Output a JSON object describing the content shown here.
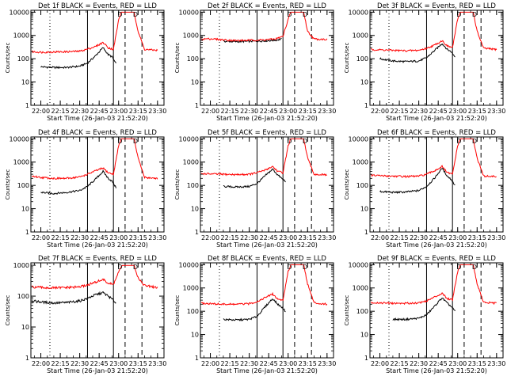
{
  "figure": {
    "background": "#ffffff",
    "axis_color": "#000000",
    "events_color": "#000000",
    "lld_color": "#ff0000"
  },
  "chart_data": [
    {
      "type": "line",
      "title": "Det 1f BLACK = Events, RED = LLD",
      "xlabel": "Start Time (26-Jan-03 21:52:20)",
      "ylabel": "Counts/sec",
      "xticks": [
        "22:00",
        "22:15",
        "22:30",
        "22:45",
        "23:00",
        "23:15",
        "23:30"
      ],
      "yticks": [
        "1",
        "10",
        "100",
        "1000",
        "10000"
      ],
      "xlim": [
        "21:52:20",
        "23:35"
      ],
      "ylim": [
        1,
        12000
      ],
      "yscale": "log",
      "marker_labels": [
        "D",
        "D"
      ],
      "vlines_dotted": [
        "22:07"
      ],
      "vlines_solid": [
        "22:36",
        "22:56"
      ],
      "vlines_dashed": [
        "23:05",
        "23:18"
      ],
      "series": [
        {
          "name": "BLACK = Events",
          "color": "#000000",
          "x": [
            "22:00",
            "22:10",
            "22:20",
            "22:30",
            "22:36",
            "22:42",
            "22:48",
            "22:52",
            "22:55",
            "22:58"
          ],
          "values": [
            45,
            42,
            42,
            48,
            65,
            130,
            300,
            150,
            120,
            60
          ]
        },
        {
          "name": "RED = LLD",
          "color": "#ff0000",
          "x": [
            "21:53",
            "22:00",
            "22:10",
            "22:20",
            "22:30",
            "22:36",
            "22:42",
            "22:48",
            "22:52",
            "22:56",
            "23:00",
            "23:02",
            "23:12",
            "23:15",
            "23:20",
            "23:30"
          ],
          "values": [
            200,
            190,
            195,
            200,
            210,
            260,
            330,
            500,
            300,
            250,
            4500,
            10000,
            10000,
            1500,
            250,
            230
          ]
        }
      ]
    },
    {
      "type": "line",
      "title": "Det 2f BLACK = Events, RED = LLD",
      "xlabel": "Start Time (26-Jan-03 21:52:20)",
      "ylabel": "Counts/sec",
      "xticks": [
        "22:00",
        "22:15",
        "22:30",
        "22:45",
        "23:00",
        "23:15",
        "23:30"
      ],
      "yticks": [
        "1",
        "10",
        "100",
        "1000",
        "10000"
      ],
      "xlim": [
        "21:52:20",
        "23:35"
      ],
      "ylim": [
        1,
        12000
      ],
      "yscale": "log",
      "marker_labels": [
        "D",
        "D"
      ],
      "vlines_dotted": [
        "22:07"
      ],
      "vlines_solid": [
        "22:36",
        "22:56"
      ],
      "vlines_dashed": [
        "23:05",
        "23:18"
      ],
      "series": [
        {
          "name": "BLACK = Events",
          "color": "#000000",
          "x": [
            "22:10",
            "22:20",
            "22:30",
            "22:40",
            "22:50",
            "22:55"
          ],
          "values": [
            560,
            540,
            560,
            580,
            620,
            700
          ]
        },
        {
          "name": "RED = LLD",
          "color": "#ff0000",
          "x": [
            "21:53",
            "22:00",
            "22:10",
            "22:20",
            "22:30",
            "22:40",
            "22:50",
            "22:56",
            "23:00",
            "23:02",
            "23:12",
            "23:15",
            "23:20",
            "23:30"
          ],
          "values": [
            700,
            720,
            650,
            600,
            620,
            640,
            700,
            900,
            5000,
            10000,
            10000,
            1500,
            700,
            680
          ]
        }
      ]
    },
    {
      "type": "line",
      "title": "Det 3f BLACK = Events, RED = LLD",
      "xlabel": "Start Time (26-Jan-03 21:52:20)",
      "ylabel": "Counts/sec",
      "xticks": [
        "22:00",
        "22:15",
        "22:30",
        "22:45",
        "23:00",
        "23:15",
        "23:30"
      ],
      "yticks": [
        "1",
        "10",
        "100",
        "1000",
        "10000"
      ],
      "xlim": [
        "21:52:20",
        "23:35"
      ],
      "ylim": [
        1,
        12000
      ],
      "yscale": "log",
      "marker_labels": [
        "D",
        "D"
      ],
      "vlines_dotted": [
        "22:07"
      ],
      "vlines_solid": [
        "22:36",
        "22:56"
      ],
      "vlines_dashed": [
        "23:05",
        "23:18"
      ],
      "series": [
        {
          "name": "BLACK = Events",
          "color": "#000000",
          "x": [
            "22:00",
            "22:10",
            "22:20",
            "22:30",
            "22:36",
            "22:42",
            "22:48",
            "22:52",
            "22:55",
            "22:58"
          ],
          "values": [
            100,
            80,
            75,
            80,
            110,
            220,
            450,
            250,
            200,
            120
          ]
        },
        {
          "name": "RED = LLD",
          "color": "#ff0000",
          "x": [
            "21:53",
            "22:00",
            "22:10",
            "22:20",
            "22:30",
            "22:36",
            "22:42",
            "22:48",
            "22:52",
            "22:56",
            "23:00",
            "23:02",
            "23:12",
            "23:15",
            "23:20",
            "23:30"
          ],
          "values": [
            250,
            240,
            230,
            220,
            230,
            280,
            380,
            600,
            350,
            300,
            5000,
            10000,
            10000,
            1500,
            280,
            250
          ]
        }
      ]
    },
    {
      "type": "line",
      "title": "Det 4f BLACK = Events, RED = LLD",
      "xlabel": "Start Time (26-Jan-03 21:52:20)",
      "ylabel": "Counts/sec",
      "xticks": [
        "22:00",
        "22:15",
        "22:30",
        "22:45",
        "23:00",
        "23:15",
        "23:30"
      ],
      "yticks": [
        "1",
        "10",
        "100",
        "1000",
        "10000"
      ],
      "xlim": [
        "21:52:20",
        "23:35"
      ],
      "ylim": [
        1,
        12000
      ],
      "yscale": "log",
      "marker_labels": [
        "D",
        "D"
      ],
      "vlines_dotted": [
        "22:07"
      ],
      "vlines_solid": [
        "22:36",
        "22:56"
      ],
      "vlines_dashed": [
        "23:05",
        "23:18"
      ],
      "series": [
        {
          "name": "BLACK = Events",
          "color": "#000000",
          "x": [
            "22:00",
            "22:10",
            "22:20",
            "22:30",
            "22:36",
            "22:42",
            "22:48",
            "22:52",
            "22:55",
            "22:58"
          ],
          "values": [
            50,
            45,
            50,
            60,
            90,
            180,
            400,
            200,
            150,
            80
          ]
        },
        {
          "name": "RED = LLD",
          "color": "#ff0000",
          "x": [
            "21:53",
            "22:00",
            "22:10",
            "22:20",
            "22:30",
            "22:36",
            "22:42",
            "22:48",
            "22:52",
            "22:56",
            "23:00",
            "23:02",
            "23:12",
            "23:15",
            "23:20",
            "23:30"
          ],
          "values": [
            250,
            220,
            200,
            200,
            230,
            300,
            420,
            550,
            350,
            300,
            5000,
            10000,
            10000,
            1500,
            220,
            200
          ]
        }
      ]
    },
    {
      "type": "line",
      "title": "Det 5f BLACK = Events, RED = LLD",
      "xlabel": "Start Time (26-Jan-03 21:52:20)",
      "ylabel": "Counts/sec",
      "xticks": [
        "22:00",
        "22:15",
        "22:30",
        "22:45",
        "23:00",
        "23:15",
        "23:30"
      ],
      "yticks": [
        "1",
        "10",
        "100",
        "1000",
        "10000"
      ],
      "xlim": [
        "21:52:20",
        "23:35"
      ],
      "ylim": [
        1,
        12000
      ],
      "yscale": "log",
      "marker_labels": [
        "D",
        "D"
      ],
      "vlines_dotted": [
        "22:07"
      ],
      "vlines_solid": [
        "22:36",
        "22:56"
      ],
      "vlines_dashed": [
        "23:05",
        "23:18"
      ],
      "series": [
        {
          "name": "BLACK = Events",
          "color": "#000000",
          "x": [
            "22:10",
            "22:20",
            "22:30",
            "22:36",
            "22:42",
            "22:48",
            "22:52",
            "22:55",
            "22:58"
          ],
          "values": [
            90,
            85,
            90,
            120,
            250,
            500,
            280,
            200,
            150
          ]
        },
        {
          "name": "RED = LLD",
          "color": "#ff0000",
          "x": [
            "21:53",
            "22:00",
            "22:10",
            "22:20",
            "22:30",
            "22:36",
            "22:42",
            "22:48",
            "22:52",
            "22:56",
            "23:00",
            "23:02",
            "23:12",
            "23:15",
            "23:20",
            "23:30"
          ],
          "values": [
            320,
            310,
            300,
            290,
            300,
            350,
            450,
            650,
            400,
            350,
            5000,
            10000,
            10000,
            1500,
            300,
            280
          ]
        }
      ]
    },
    {
      "type": "line",
      "title": "Det 6f BLACK = Events, RED = LLD",
      "xlabel": "Start Time (26-Jan-03 21:52:20)",
      "ylabel": "Counts/sec",
      "xticks": [
        "22:00",
        "22:15",
        "22:30",
        "22:45",
        "23:00",
        "23:15",
        "23:30"
      ],
      "yticks": [
        "1",
        "10",
        "100",
        "1000",
        "10000"
      ],
      "xlim": [
        "21:52:20",
        "23:35"
      ],
      "ylim": [
        1,
        12000
      ],
      "yscale": "log",
      "marker_labels": [
        "D",
        "D"
      ],
      "vlines_dotted": [
        "22:07"
      ],
      "vlines_solid": [
        "22:36",
        "22:56"
      ],
      "vlines_dashed": [
        "23:05",
        "23:18"
      ],
      "series": [
        {
          "name": "BLACK = Events",
          "color": "#000000",
          "x": [
            "22:00",
            "22:10",
            "22:20",
            "22:30",
            "22:36",
            "22:42",
            "22:48",
            "22:52",
            "22:55",
            "22:58"
          ],
          "values": [
            55,
            50,
            52,
            60,
            90,
            200,
            550,
            250,
            180,
            100
          ]
        },
        {
          "name": "RED = LLD",
          "color": "#ff0000",
          "x": [
            "21:53",
            "22:00",
            "22:10",
            "22:20",
            "22:30",
            "22:36",
            "22:42",
            "22:48",
            "22:52",
            "22:56",
            "23:00",
            "23:02",
            "23:12",
            "23:15",
            "23:20",
            "23:30"
          ],
          "values": [
            270,
            260,
            250,
            240,
            250,
            300,
            420,
            650,
            350,
            300,
            5000,
            10000,
            10000,
            1500,
            250,
            240
          ]
        }
      ]
    },
    {
      "type": "line",
      "title": "Det 7f BLACK = Events, RED = LLD",
      "xlabel": "Start Time (26-Jan-03 21:52:20)",
      "ylabel": "Counts/sec",
      "xticks": [
        "22:00",
        "22:15",
        "22:30",
        "22:45",
        "23:00",
        "23:15",
        "23:30"
      ],
      "yticks": [
        "1",
        "10",
        "100",
        "1000"
      ],
      "xlim": [
        "21:52:20",
        "23:35"
      ],
      "ylim": [
        1,
        1200
      ],
      "yscale": "log",
      "marker_labels": [
        "D",
        "D"
      ],
      "vlines_dotted": [
        "22:07"
      ],
      "vlines_solid": [
        "22:36",
        "22:56"
      ],
      "vlines_dashed": [
        "23:05",
        "23:18"
      ],
      "series": [
        {
          "name": "BLACK = Events",
          "color": "#000000",
          "x": [
            "21:53",
            "22:00",
            "22:10",
            "22:20",
            "22:30",
            "22:36",
            "22:42",
            "22:48",
            "22:52",
            "22:55",
            "22:58"
          ],
          "values": [
            70,
            65,
            60,
            62,
            70,
            85,
            110,
            130,
            100,
            80,
            60
          ]
        },
        {
          "name": "RED = LLD",
          "color": "#ff0000",
          "x": [
            "21:53",
            "22:00",
            "22:10",
            "22:20",
            "22:30",
            "22:36",
            "22:42",
            "22:48",
            "22:52",
            "22:56",
            "23:00",
            "23:03",
            "23:12",
            "23:15",
            "23:20",
            "23:30"
          ],
          "values": [
            200,
            190,
            185,
            190,
            200,
            230,
            280,
            350,
            260,
            240,
            600,
            1000,
            1000,
            400,
            220,
            190
          ]
        }
      ]
    },
    {
      "type": "line",
      "title": "Det 8f BLACK = Events, RED = LLD",
      "xlabel": "Start Time (26-Jan-03 21:52:20)",
      "ylabel": "Counts/sec",
      "xticks": [
        "22:00",
        "22:15",
        "22:30",
        "22:45",
        "23:00",
        "23:15",
        "23:30"
      ],
      "yticks": [
        "1",
        "10",
        "100",
        "1000",
        "10000"
      ],
      "xlim": [
        "21:52:20",
        "23:35"
      ],
      "ylim": [
        1,
        12000
      ],
      "yscale": "log",
      "marker_labels": [
        "D",
        "D"
      ],
      "vlines_dotted": [
        "22:07"
      ],
      "vlines_solid": [
        "22:36",
        "22:56"
      ],
      "vlines_dashed": [
        "23:05",
        "23:18"
      ],
      "series": [
        {
          "name": "BLACK = Events",
          "color": "#000000",
          "x": [
            "22:10",
            "22:20",
            "22:30",
            "22:36",
            "22:42",
            "22:48",
            "22:52",
            "22:55",
            "22:58"
          ],
          "values": [
            45,
            42,
            45,
            60,
            150,
            350,
            200,
            150,
            100
          ]
        },
        {
          "name": "RED = LLD",
          "color": "#ff0000",
          "x": [
            "21:53",
            "22:00",
            "22:10",
            "22:20",
            "22:30",
            "22:36",
            "22:42",
            "22:48",
            "22:52",
            "22:56",
            "23:00",
            "23:02",
            "23:12",
            "23:15",
            "23:20",
            "23:30"
          ],
          "values": [
            220,
            210,
            200,
            200,
            210,
            260,
            380,
            550,
            330,
            300,
            5000,
            10000,
            10000,
            1500,
            230,
            200
          ]
        }
      ]
    },
    {
      "type": "line",
      "title": "Det 9f BLACK = Events, RED = LLD",
      "xlabel": "Start Time (26-Jan-03 21:52:20)",
      "ylabel": "Counts/sec",
      "xticks": [
        "22:00",
        "22:15",
        "22:30",
        "22:45",
        "23:00",
        "23:15",
        "23:30"
      ],
      "yticks": [
        "1",
        "10",
        "100",
        "1000",
        "10000"
      ],
      "xlim": [
        "21:52:20",
        "23:35"
      ],
      "ylim": [
        1,
        12000
      ],
      "yscale": "log",
      "marker_labels": [
        "D",
        "D"
      ],
      "vlines_dotted": [
        "22:07"
      ],
      "vlines_solid": [
        "22:36",
        "22:56"
      ],
      "vlines_dashed": [
        "23:05",
        "23:18"
      ],
      "series": [
        {
          "name": "BLACK = Events",
          "color": "#000000",
          "x": [
            "22:10",
            "22:20",
            "22:30",
            "22:36",
            "22:42",
            "22:48",
            "22:52",
            "22:55",
            "22:58"
          ],
          "values": [
            45,
            45,
            50,
            70,
            160,
            380,
            220,
            160,
            100
          ]
        },
        {
          "name": "RED = LLD",
          "color": "#ff0000",
          "x": [
            "21:53",
            "22:00",
            "22:10",
            "22:20",
            "22:30",
            "22:36",
            "22:42",
            "22:48",
            "22:52",
            "22:56",
            "23:00",
            "23:02",
            "23:12",
            "23:15",
            "23:20",
            "23:30"
          ],
          "values": [
            240,
            230,
            220,
            220,
            230,
            280,
            400,
            600,
            350,
            320,
            5000,
            10000,
            10000,
            1500,
            240,
            220
          ]
        }
      ]
    }
  ]
}
